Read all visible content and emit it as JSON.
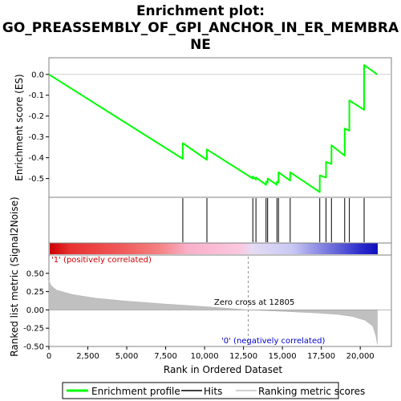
{
  "chart_data": {
    "type": "line",
    "title_lines": [
      "Enrichment plot:",
      "GO_PREASSEMBLY_OF_GPI_ANCHOR_IN_ER_MEMBRA",
      "NE"
    ],
    "es_panel": {
      "ylabel": "Enrichment score (ES)",
      "ylim": [
        -0.59,
        0.08
      ],
      "yticks": [
        0.0,
        -0.1,
        -0.2,
        -0.3,
        -0.4,
        -0.5
      ],
      "ytick_labels": [
        "0.0",
        "-0.1",
        "-0.2",
        "-0.3",
        "-0.4",
        "-0.5"
      ],
      "line_color": "#00ff00"
    },
    "x": {
      "xlabel": "Rank in Ordered Dataset",
      "xlim": [
        0,
        22000
      ],
      "xticks": [
        0,
        2500,
        5000,
        7500,
        10000,
        12500,
        15000,
        17500,
        20000
      ],
      "xtick_labels": [
        "0",
        "2,500",
        "5,000",
        "7,500",
        "10,000",
        "12,500",
        "15,000",
        "17,500",
        "20,000"
      ],
      "n_genes": 21100
    },
    "hits": [
      8600,
      10150,
      13100,
      13300,
      13950,
      14050,
      14650,
      14750,
      15500,
      17400,
      17800,
      18150,
      19000,
      19300,
      20250
    ],
    "es_points": [
      [
        0,
        0.0
      ],
      [
        8600,
        -0.405
      ],
      [
        8600,
        -0.33
      ],
      [
        10150,
        -0.41
      ],
      [
        10150,
        -0.36
      ],
      [
        13100,
        -0.5
      ],
      [
        13100,
        -0.49
      ],
      [
        13300,
        -0.505
      ],
      [
        13300,
        -0.495
      ],
      [
        13950,
        -0.53
      ],
      [
        13950,
        -0.515
      ],
      [
        14050,
        -0.52
      ],
      [
        14050,
        -0.5
      ],
      [
        14650,
        -0.53
      ],
      [
        14650,
        -0.515
      ],
      [
        14750,
        -0.52
      ],
      [
        14750,
        -0.47
      ],
      [
        15500,
        -0.51
      ],
      [
        15500,
        -0.47
      ],
      [
        17400,
        -0.565
      ],
      [
        17400,
        -0.485
      ],
      [
        17800,
        -0.495
      ],
      [
        17800,
        -0.42
      ],
      [
        18150,
        -0.43
      ],
      [
        18150,
        -0.34
      ],
      [
        19000,
        -0.39
      ],
      [
        19000,
        -0.26
      ],
      [
        19300,
        -0.27
      ],
      [
        19300,
        -0.125
      ],
      [
        20250,
        -0.17
      ],
      [
        20250,
        0.045
      ],
      [
        21100,
        0.0
      ]
    ],
    "metric_panel": {
      "ylabel": "Ranked list metric (Signal2Noise)",
      "ylim": [
        -0.5,
        0.75
      ],
      "yticks": [
        0.5,
        0.25,
        0.0,
        -0.25,
        -0.5
      ],
      "ytick_labels": [
        "0.50",
        "0.25",
        "0.00",
        "-0.25",
        "-0.50"
      ],
      "curve": [
        [
          0,
          0.4
        ],
        [
          150,
          0.33
        ],
        [
          500,
          0.27
        ],
        [
          1500,
          0.21
        ],
        [
          3000,
          0.16
        ],
        [
          5000,
          0.12
        ],
        [
          7500,
          0.08
        ],
        [
          10000,
          0.045
        ],
        [
          12805,
          0.0
        ],
        [
          15000,
          -0.02
        ],
        [
          17000,
          -0.04
        ],
        [
          18500,
          -0.06
        ],
        [
          19500,
          -0.09
        ],
        [
          20300,
          -0.14
        ],
        [
          20800,
          -0.22
        ],
        [
          21000,
          -0.35
        ],
        [
          21100,
          -0.47
        ]
      ],
      "zero_cross": 12805,
      "zero_cross_label": "Zero cross at 12805",
      "pos_label": "'1' (positively correlated)",
      "neg_label": "'0' (negatively correlated)"
    },
    "legend": {
      "items": [
        {
          "label": "Enrichment profile",
          "color": "#00ff00"
        },
        {
          "label": "Hits",
          "color": "#000000"
        },
        {
          "label": "Ranking metric scores",
          "color": "#c0c0c0"
        }
      ],
      "position": "bottom"
    }
  }
}
